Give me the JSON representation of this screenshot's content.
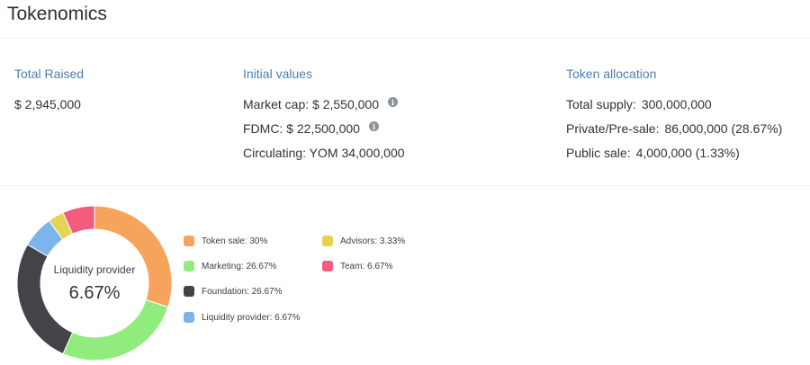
{
  "header": {
    "title": "Tokenomics"
  },
  "total_raised": {
    "heading": "Total Raised",
    "value": "$ 2,945,000"
  },
  "initial_values": {
    "heading": "Initial values",
    "market_cap": "Market cap: $ 2,550,000",
    "fdmc": "FDMC: $ 22,500,000",
    "circulating": "Circulating: YOM 34,000,000"
  },
  "token_allocation": {
    "heading": "Token allocation",
    "total_supply_label": "Total supply:",
    "total_supply_value": "300,000,000",
    "private_label": "Private/Pre-sale:",
    "private_value": "86,000,000 (28.67%)",
    "public_label": "Public sale:",
    "public_value": "4,000,000 (1.33%)"
  },
  "chart_data": {
    "type": "pie",
    "variant": "donut",
    "center": {
      "label": "Liquidity provider",
      "value": "6.67%"
    },
    "slices": [
      {
        "label": "Token sale: 30%",
        "value": 30,
        "color": "#f7a35c"
      },
      {
        "label": "Marketing: 26.67%",
        "value": 26.67,
        "color": "#90ed7d"
      },
      {
        "label": "Foundation: 26.67%",
        "value": 26.67,
        "color": "#434348"
      },
      {
        "label": "Liquidity provider: 6.67%",
        "value": 6.67,
        "color": "#7cb5ec"
      },
      {
        "label": "Advisors: 3.33%",
        "value": 3.33,
        "color": "#e4d354"
      },
      {
        "label": "Team: 6.67%",
        "value": 6.67,
        "color": "#f15c80"
      }
    ],
    "legend_placement": "right"
  }
}
